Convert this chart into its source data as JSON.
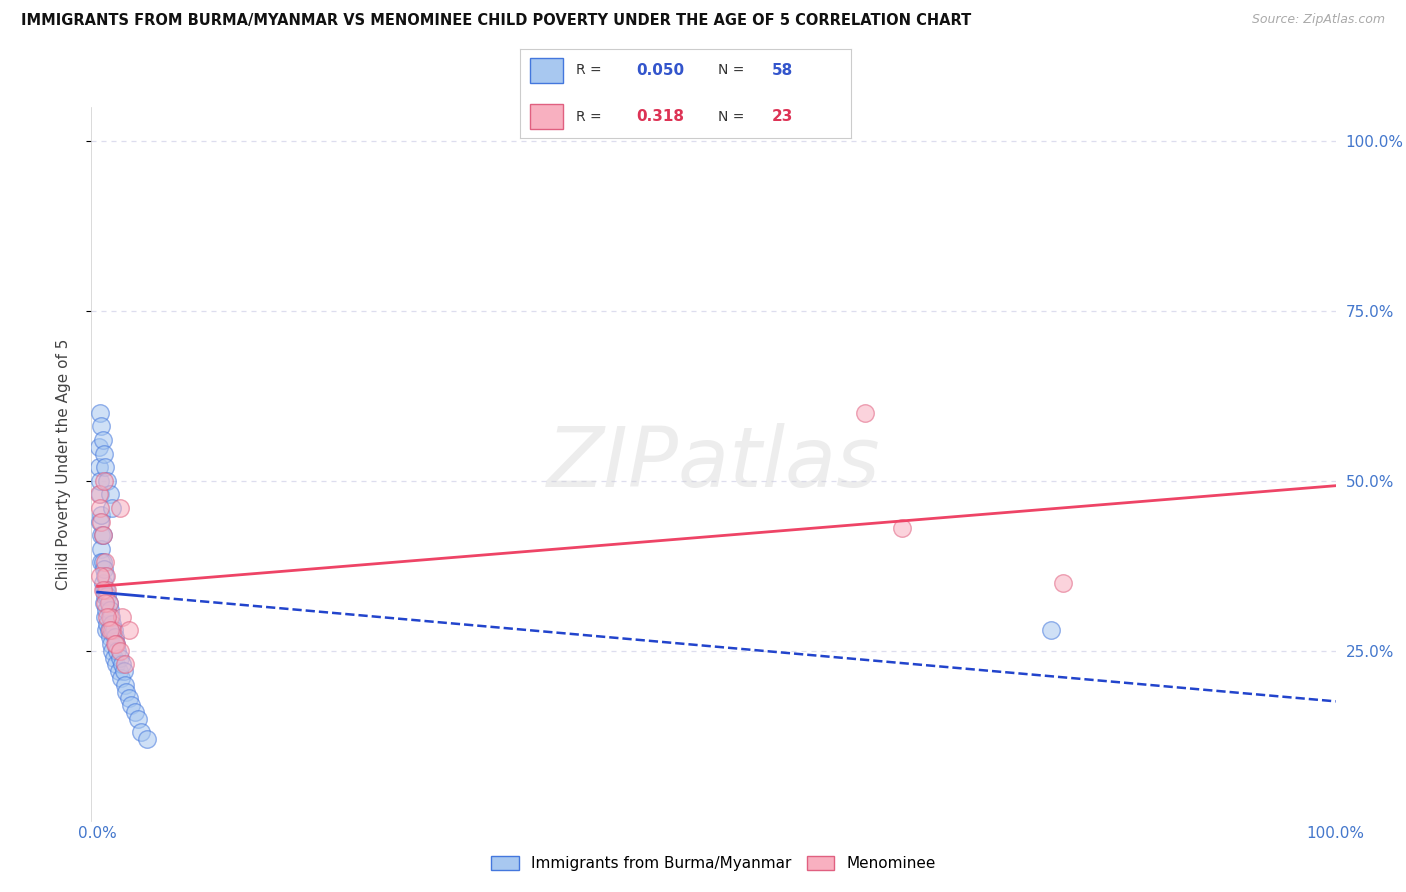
{
  "title": "IMMIGRANTS FROM BURMA/MYANMAR VS MENOMINEE CHILD POVERTY UNDER THE AGE OF 5 CORRELATION CHART",
  "source": "Source: ZipAtlas.com",
  "ylabel": "Child Poverty Under the Age of 5",
  "legend_label1": "Immigrants from Burma/Myanmar",
  "legend_label2": "Menominee",
  "r1": "0.050",
  "n1": "58",
  "r2": "0.318",
  "n2": "23",
  "blue_face_color": "#a8c8f0",
  "blue_edge_color": "#4477dd",
  "pink_face_color": "#f8b0c0",
  "pink_edge_color": "#e06080",
  "blue_line_color": "#2244cc",
  "pink_line_color": "#ee4466",
  "axis_tick_color": "#4477cc",
  "background_color": "#ffffff",
  "grid_color": "#ddddee",
  "title_color": "#111111",
  "source_color": "#aaaaaa",
  "blue_r_color": "#3355cc",
  "pink_r_color": "#dd3355",
  "watermark": "ZIPatlas",
  "blue_scatter_x": [
    0.001,
    0.001,
    0.002,
    0.002,
    0.002,
    0.003,
    0.003,
    0.003,
    0.003,
    0.004,
    0.004,
    0.004,
    0.005,
    0.005,
    0.005,
    0.006,
    0.006,
    0.006,
    0.007,
    0.007,
    0.007,
    0.008,
    0.008,
    0.009,
    0.009,
    0.01,
    0.01,
    0.011,
    0.011,
    0.012,
    0.012,
    0.013,
    0.013,
    0.014,
    0.015,
    0.015,
    0.016,
    0.017,
    0.018,
    0.019,
    0.02,
    0.021,
    0.022,
    0.023,
    0.025,
    0.027,
    0.03,
    0.033,
    0.035,
    0.04,
    0.002,
    0.003,
    0.004,
    0.005,
    0.006,
    0.008,
    0.01,
    0.012
  ],
  "blue_scatter_y": [
    0.55,
    0.52,
    0.48,
    0.5,
    0.44,
    0.45,
    0.42,
    0.4,
    0.38,
    0.42,
    0.38,
    0.35,
    0.37,
    0.34,
    0.32,
    0.36,
    0.33,
    0.3,
    0.34,
    0.31,
    0.28,
    0.33,
    0.29,
    0.32,
    0.28,
    0.31,
    0.27,
    0.3,
    0.26,
    0.29,
    0.25,
    0.28,
    0.24,
    0.27,
    0.26,
    0.23,
    0.25,
    0.22,
    0.24,
    0.21,
    0.23,
    0.22,
    0.2,
    0.19,
    0.18,
    0.17,
    0.16,
    0.15,
    0.13,
    0.12,
    0.6,
    0.58,
    0.56,
    0.54,
    0.52,
    0.5,
    0.48,
    0.46
  ],
  "pink_scatter_x": [
    0.001,
    0.002,
    0.003,
    0.004,
    0.005,
    0.006,
    0.007,
    0.008,
    0.009,
    0.01,
    0.012,
    0.015,
    0.018,
    0.02,
    0.025,
    0.002,
    0.004,
    0.006,
    0.008,
    0.01,
    0.014,
    0.018,
    0.022
  ],
  "pink_scatter_y": [
    0.48,
    0.46,
    0.44,
    0.42,
    0.5,
    0.38,
    0.36,
    0.34,
    0.32,
    0.3,
    0.28,
    0.26,
    0.46,
    0.3,
    0.28,
    0.36,
    0.34,
    0.32,
    0.3,
    0.28,
    0.26,
    0.25,
    0.23
  ]
}
